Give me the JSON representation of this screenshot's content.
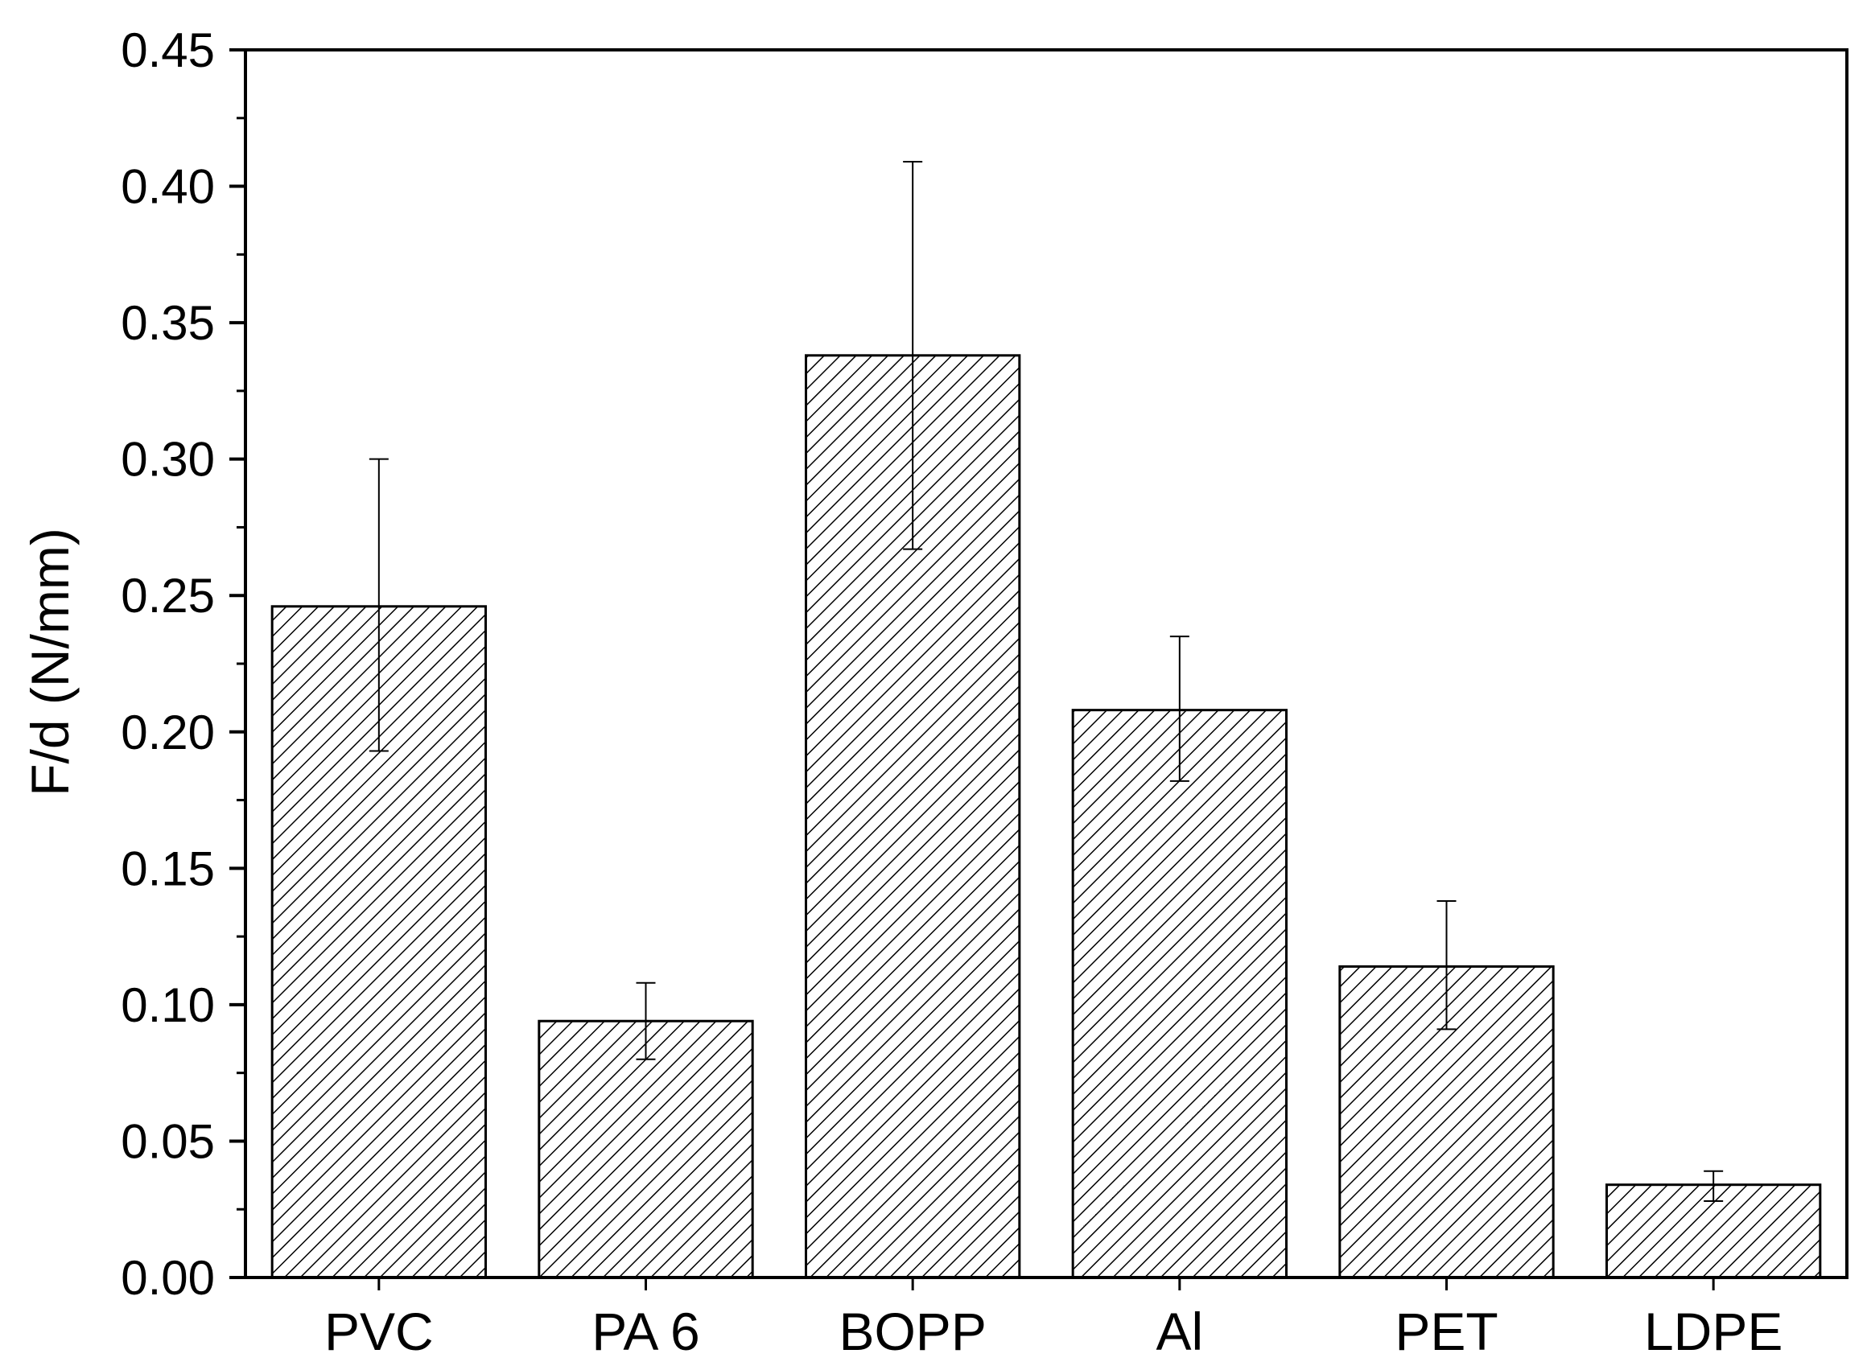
{
  "chart_data": {
    "type": "bar",
    "title": "",
    "xlabel": "",
    "ylabel": "F/d (N/mm)",
    "ylim": [
      0,
      0.45
    ],
    "y_major_ticks": [
      0.0,
      0.05,
      0.1,
      0.15,
      0.2,
      0.25,
      0.3,
      0.35,
      0.4,
      0.45
    ],
    "y_tick_labels": [
      "0.00",
      "0.05",
      "0.10",
      "0.15",
      "0.20",
      "0.25",
      "0.30",
      "0.35",
      "0.40",
      "0.45"
    ],
    "y_minor_step": 0.025,
    "grid": false,
    "bar_fill": "diagonal hatch",
    "colors": {
      "bar_stroke": "#000000",
      "hatch": "#000000",
      "background": "#ffffff"
    },
    "categories": [
      "PVC",
      "PA 6",
      "BOPP",
      "Al",
      "PET",
      "LDPE"
    ],
    "values": [
      0.246,
      0.094,
      0.338,
      0.208,
      0.114,
      0.034
    ],
    "error_low": [
      0.193,
      0.08,
      0.267,
      0.182,
      0.091,
      0.028
    ],
    "error_high": [
      0.3,
      0.108,
      0.409,
      0.235,
      0.138,
      0.039
    ]
  }
}
